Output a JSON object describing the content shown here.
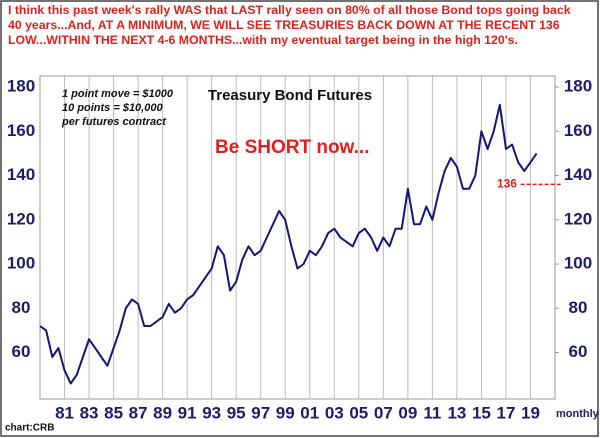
{
  "chart_data": {
    "type": "line",
    "title": "Treasury Bond Futures",
    "subtitle": "I think this past week's rally WAS that LAST rally seen on 80% of all those Bond tops going back 40 years...And, AT A MINIMUM, WE WILL SEE TREASURIES BACK DOWN AT THE RECENT 136 LOW...WITHIN THE NEXT 4-6 MONTHS...with my eventual target being in the high 120's.",
    "notes": [
      "1 point move = $1000",
      " 10 points = $10,000",
      "per futures contract"
    ],
    "annotation": "Be SHORT now...",
    "x_label": "monthly",
    "source": "chart:CRB",
    "ref_line": 136,
    "ref_color": "#e0201c",
    "xlim": [
      1979,
      2021
    ],
    "ylim": [
      39,
      185
    ],
    "yticks": [
      60,
      80,
      100,
      120,
      140,
      160,
      180
    ],
    "xticks": [
      {
        "value": 1981,
        "label": "81"
      },
      {
        "value": 1983,
        "label": "83"
      },
      {
        "value": 1985,
        "label": "85"
      },
      {
        "value": 1987,
        "label": "87"
      },
      {
        "value": 1989,
        "label": "89"
      },
      {
        "value": 1991,
        "label": "91"
      },
      {
        "value": 1993,
        "label": "93"
      },
      {
        "value": 1995,
        "label": "95"
      },
      {
        "value": 1997,
        "label": "97"
      },
      {
        "value": 1999,
        "label": "99"
      },
      {
        "value": 2001,
        "label": "01"
      },
      {
        "value": 2003,
        "label": "03"
      },
      {
        "value": 2005,
        "label": "05"
      },
      {
        "value": 2007,
        "label": "07"
      },
      {
        "value": 2009,
        "label": "09"
      },
      {
        "value": 2011,
        "label": "11"
      },
      {
        "value": 2013,
        "label": "13"
      },
      {
        "value": 2015,
        "label": "15"
      },
      {
        "value": 2017,
        "label": "17"
      },
      {
        "value": 2019,
        "label": "19"
      }
    ],
    "grid": true,
    "x": [
      1979,
      1979.5,
      1980,
      1980.5,
      1981,
      1981.5,
      1982,
      1982.5,
      1983,
      1983.5,
      1984,
      1984.5,
      1985,
      1985.5,
      1986,
      1986.5,
      1987,
      1987.5,
      1988,
      1988.5,
      1989,
      1989.5,
      1990,
      1990.5,
      1991,
      1991.5,
      1992,
      1992.5,
      1993,
      1993.5,
      1994,
      1994.5,
      1995,
      1995.5,
      1996,
      1996.5,
      1997,
      1997.5,
      1998,
      1998.5,
      1999,
      1999.5,
      2000,
      2000.5,
      2001,
      2001.5,
      2002,
      2002.5,
      2003,
      2003.5,
      2004,
      2004.5,
      2005,
      2005.5,
      2006,
      2006.5,
      2007,
      2007.5,
      2008,
      2008.5,
      2009,
      2009.5,
      2010,
      2010.5,
      2011,
      2011.5,
      2012,
      2012.5,
      2013,
      2013.5,
      2014,
      2014.5,
      2015,
      2015.5,
      2016,
      2016.5,
      2017,
      2017.5,
      2018,
      2018.5,
      2019,
      2019.5
    ],
    "series": [
      {
        "name": "Treasury Bond Futures",
        "color": "#14147a",
        "values": [
          72,
          70,
          58,
          62,
          52,
          46,
          50,
          58,
          66,
          62,
          58,
          54,
          62,
          70,
          80,
          84,
          82,
          72,
          72,
          74,
          76,
          82,
          78,
          80,
          84,
          86,
          90,
          94,
          98,
          108,
          104,
          88,
          92,
          102,
          108,
          104,
          106,
          112,
          118,
          124,
          120,
          108,
          98,
          100,
          106,
          104,
          108,
          114,
          116,
          112,
          110,
          108,
          114,
          116,
          112,
          106,
          112,
          108,
          116,
          116,
          134,
          118,
          118,
          126,
          120,
          132,
          142,
          148,
          144,
          134,
          134,
          140,
          160,
          152,
          160,
          172,
          152,
          154,
          146,
          142,
          146,
          150
        ]
      }
    ]
  }
}
